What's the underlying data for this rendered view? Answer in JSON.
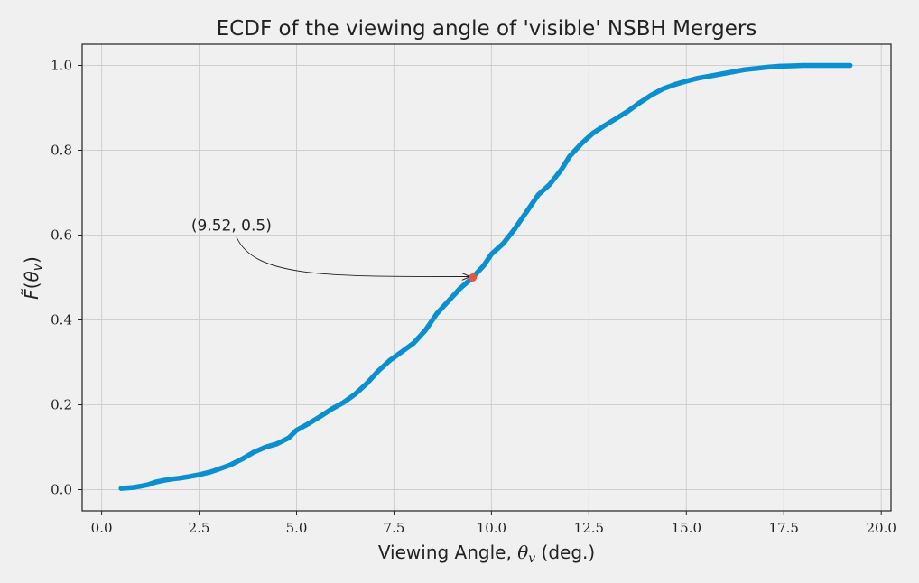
{
  "chart_data": {
    "type": "line",
    "title": "ECDF of the viewing angle of 'visible' NSBH Mergers",
    "xlabel_prefix": "Viewing Angle, ",
    "xlabel_symbol": "θ",
    "xlabel_subscript": "v",
    "xlabel_suffix": " (deg.)",
    "ylabel_symbol": "F̃",
    "ylabel_open": "(",
    "ylabel_theta": "θ",
    "ylabel_subscript": "v",
    "ylabel_close": ")",
    "xlim": [
      -0.5,
      20.25
    ],
    "ylim": [
      -0.05,
      1.05
    ],
    "xticks": [
      0.0,
      2.5,
      5.0,
      7.5,
      10.0,
      12.5,
      15.0,
      17.5,
      20.0
    ],
    "xtick_labels": [
      "0.0",
      "2.5",
      "5.0",
      "7.5",
      "10.0",
      "12.5",
      "15.0",
      "17.5",
      "20.0"
    ],
    "yticks": [
      0.0,
      0.2,
      0.4,
      0.6,
      0.8,
      1.0
    ],
    "ytick_labels": [
      "0.0",
      "0.2",
      "0.4",
      "0.6",
      "0.8",
      "1.0"
    ],
    "grid": true,
    "series": [
      {
        "color": "#0a8fd0",
        "x": [
          0.5,
          0.8,
          1.0,
          1.2,
          1.4,
          1.6,
          1.8,
          2.0,
          2.2,
          2.5,
          2.8,
          3.0,
          3.3,
          3.6,
          3.9,
          4.2,
          4.5,
          4.8,
          5.0,
          5.3,
          5.6,
          5.9,
          6.2,
          6.5,
          6.8,
          7.1,
          7.4,
          7.7,
          8.0,
          8.3,
          8.6,
          8.9,
          9.2,
          9.52,
          9.8,
          10.0,
          10.3,
          10.6,
          10.9,
          11.2,
          11.5,
          11.8,
          12.0,
          12.3,
          12.6,
          12.9,
          13.2,
          13.5,
          13.8,
          14.1,
          14.4,
          14.7,
          15.0,
          15.3,
          15.6,
          15.9,
          16.2,
          16.5,
          16.8,
          17.1,
          17.4,
          17.7,
          18.0,
          18.5,
          19.2
        ],
        "y": [
          0.003,
          0.005,
          0.008,
          0.012,
          0.018,
          0.022,
          0.025,
          0.027,
          0.03,
          0.035,
          0.042,
          0.048,
          0.058,
          0.072,
          0.088,
          0.1,
          0.108,
          0.122,
          0.14,
          0.155,
          0.172,
          0.19,
          0.205,
          0.225,
          0.25,
          0.28,
          0.305,
          0.325,
          0.345,
          0.375,
          0.415,
          0.445,
          0.475,
          0.5,
          0.528,
          0.555,
          0.58,
          0.615,
          0.655,
          0.695,
          0.72,
          0.755,
          0.785,
          0.815,
          0.84,
          0.858,
          0.875,
          0.892,
          0.912,
          0.93,
          0.945,
          0.955,
          0.963,
          0.97,
          0.975,
          0.98,
          0.985,
          0.99,
          0.993,
          0.996,
          0.998,
          0.999,
          1.0,
          1.0,
          1.0
        ]
      }
    ],
    "highlight_point": {
      "x": 9.52,
      "y": 0.5,
      "color": "#e8543c"
    },
    "annotation": {
      "text": "(9.52, 0.5)",
      "x": 2.3,
      "y": 0.6
    }
  }
}
